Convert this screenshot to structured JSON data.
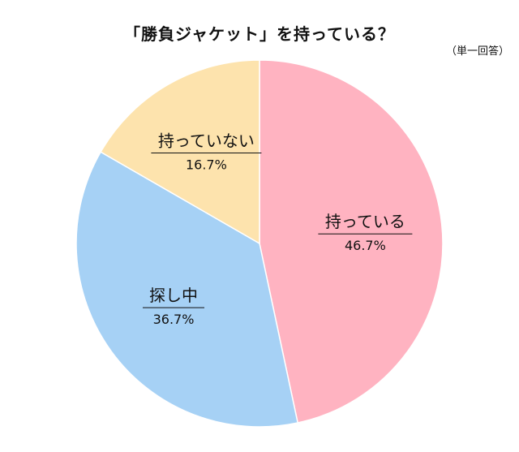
{
  "title": "「勝負ジャケット」を持っている？",
  "note": "（単一回答）",
  "chart_data": {
    "type": "pie",
    "title": "「勝負ジャケット」を持っている？",
    "slices": [
      {
        "label": "持っている",
        "value": 46.7,
        "display": "46.7%",
        "color": "#ffb3c1"
      },
      {
        "label": "探し中",
        "value": 36.7,
        "display": "36.7%",
        "color": "#a6d1f5"
      },
      {
        "label": "持っていない",
        "value": 16.7,
        "display": "16.7%",
        "color": "#fde3ad"
      }
    ],
    "start_angle_deg": 0,
    "direction": "clockwise",
    "legend": "none"
  }
}
